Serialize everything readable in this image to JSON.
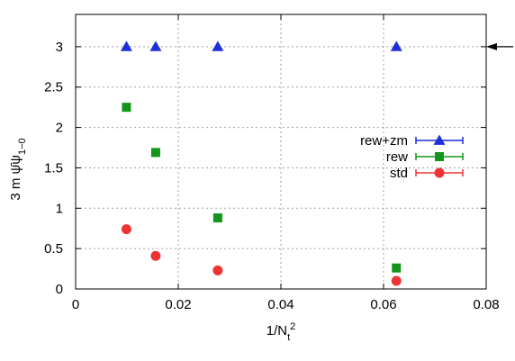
{
  "chart_data": {
    "type": "scatter",
    "xlabel": "1/N_t^2",
    "ylabel": "3 m ψ̄ψ_{1−0}",
    "xlim": [
      0,
      0.08
    ],
    "ylim": [
      0,
      3.4
    ],
    "x_ticks": [
      "0",
      "0.02",
      "0.04",
      "0.06",
      "0.08"
    ],
    "y_ticks": [
      "0",
      "0.5",
      "1",
      "1.5",
      "2",
      "2.5",
      "3"
    ],
    "grid": true,
    "legend_position": "right",
    "arrow_annotation": {
      "y": 3,
      "side": "right"
    },
    "series": [
      {
        "name": "rew+zm",
        "marker": "triangle",
        "color": "#1f2fd8",
        "x": [
          0.0099,
          0.0156,
          0.0277,
          0.0625
        ],
        "y": [
          3,
          3,
          3,
          3
        ]
      },
      {
        "name": "rew",
        "marker": "square",
        "color": "#12951a",
        "x": [
          0.0099,
          0.0156,
          0.0277,
          0.0625
        ],
        "y": [
          2.25,
          1.69,
          0.88,
          0.26
        ]
      },
      {
        "name": "std",
        "marker": "circle",
        "color": "#ee3333",
        "x": [
          0.0099,
          0.0156,
          0.0277,
          0.0625
        ],
        "y": [
          0.74,
          0.41,
          0.23,
          0.1
        ]
      }
    ]
  }
}
